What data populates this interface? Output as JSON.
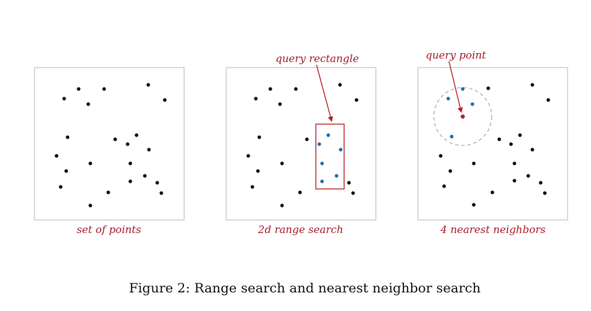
{
  "panels": [
    {
      "id": "set",
      "label": "set of points"
    },
    {
      "id": "range",
      "label": "2d range search",
      "annotation": "query rectangle"
    },
    {
      "id": "nearest",
      "label": "4 nearest neighbors",
      "annotation": "query point"
    }
  ],
  "figure_caption": "Figure 2: Range search and nearest neighbor search",
  "colors": {
    "accent_red": "#b3202a",
    "highlight_blue": "#1f6fb0",
    "point_black": "#111111",
    "box_border": "#c8c8c8",
    "circle_gray": "#b0b0b0"
  }
}
